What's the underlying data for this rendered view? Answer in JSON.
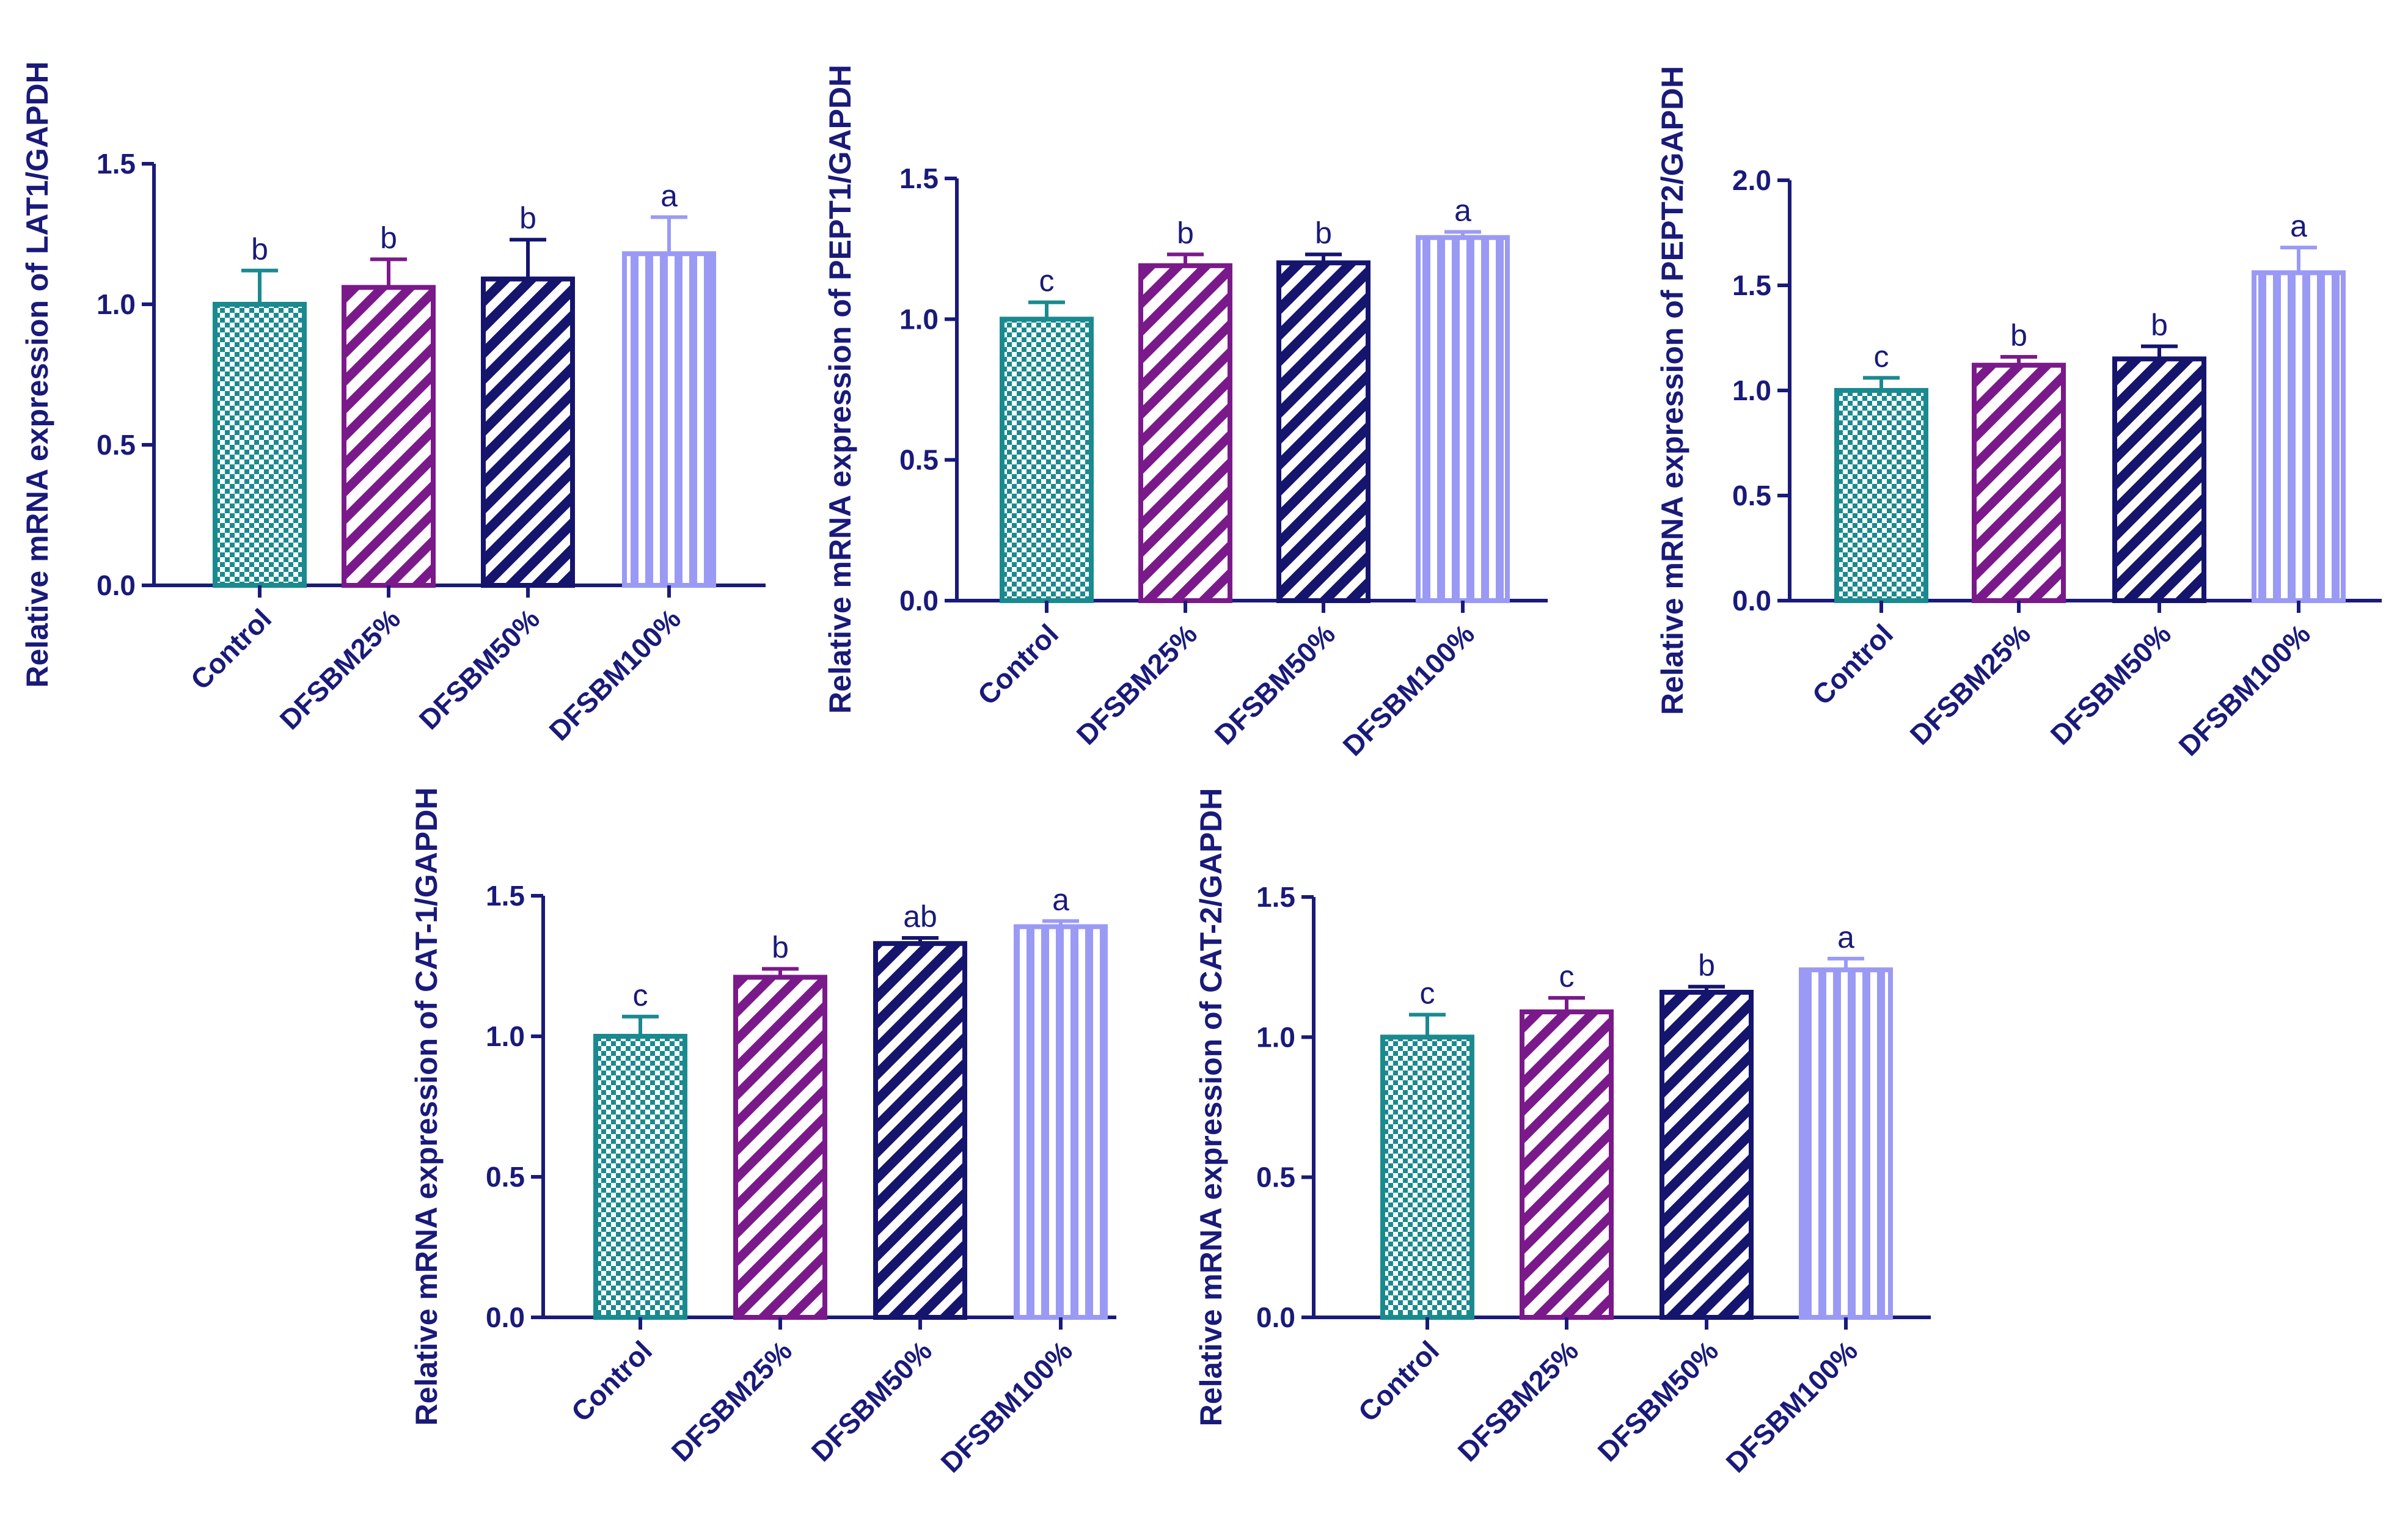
{
  "colors": {
    "axis": "#1a1a7a",
    "text": "#1a1a7a",
    "control": "#1a8a8f",
    "dfsbm25": "#7a1a8a",
    "dfsbm50": "#15156e",
    "dfsbm100": "#9a9af5"
  },
  "chart_data": [
    {
      "type": "bar",
      "panel": "LAT1",
      "ylabel": "Relative mRNA expression of LAT1/GAPDH",
      "categories": [
        "Control",
        "DFSBM25%",
        "DFSBM50%",
        "DFSBM100%"
      ],
      "values": [
        1.0,
        1.06,
        1.09,
        1.18
      ],
      "errors": [
        0.12,
        0.1,
        0.14,
        0.13
      ],
      "significance": [
        "b",
        "b",
        "b",
        "a"
      ],
      "ylim": [
        0,
        1.5
      ],
      "yticks": [
        "0.0",
        "0.5",
        "1.0",
        "1.5"
      ],
      "patterns": [
        "checker",
        "diag",
        "diag",
        "vert"
      ]
    },
    {
      "type": "bar",
      "panel": "PEPT1",
      "ylabel": "Relative mRNA expression of PEPT1/GAPDH",
      "categories": [
        "Control",
        "DFSBM25%",
        "DFSBM50%",
        "DFSBM100%"
      ],
      "values": [
        1.0,
        1.19,
        1.2,
        1.29
      ],
      "errors": [
        0.06,
        0.04,
        0.03,
        0.02
      ],
      "significance": [
        "c",
        "b",
        "b",
        "a"
      ],
      "ylim": [
        0,
        1.5
      ],
      "yticks": [
        "0.0",
        "0.5",
        "1.0",
        "1.5"
      ],
      "patterns": [
        "checker",
        "diag",
        "diag",
        "vert"
      ]
    },
    {
      "type": "bar",
      "panel": "PEPT2",
      "ylabel": "Relative mRNA expression of PEPT2/GAPDH",
      "categories": [
        "Control",
        "DFSBM25%",
        "DFSBM50%",
        "DFSBM100%"
      ],
      "values": [
        1.0,
        1.12,
        1.15,
        1.56
      ],
      "errors": [
        0.06,
        0.04,
        0.06,
        0.12
      ],
      "significance": [
        "c",
        "b",
        "b",
        "a"
      ],
      "ylim": [
        0,
        2.0
      ],
      "yticks": [
        "0.0",
        "0.5",
        "1.0",
        "1.5",
        "2.0"
      ],
      "patterns": [
        "checker",
        "diag",
        "diag",
        "vert"
      ]
    },
    {
      "type": "bar",
      "panel": "CAT-1",
      "ylabel": "Relative mRNA expression of CAT-1/GAPDH",
      "categories": [
        "Control",
        "DFSBM25%",
        "DFSBM50%",
        "DFSBM100%"
      ],
      "values": [
        1.0,
        1.21,
        1.33,
        1.39
      ],
      "errors": [
        0.07,
        0.03,
        0.02,
        0.02
      ],
      "significance": [
        "c",
        "b",
        "ab",
        "a"
      ],
      "ylim": [
        0,
        1.5
      ],
      "yticks": [
        "0.0",
        "0.5",
        "1.0",
        "1.5"
      ],
      "patterns": [
        "checker",
        "diag",
        "diag",
        "vert"
      ]
    },
    {
      "type": "bar",
      "panel": "CAT-2",
      "ylabel": "Relative mRNA expression of CAT-2/GAPDH",
      "categories": [
        "Control",
        "DFSBM25%",
        "DFSBM50%",
        "DFSBM100%"
      ],
      "values": [
        1.0,
        1.09,
        1.16,
        1.24
      ],
      "errors": [
        0.08,
        0.05,
        0.02,
        0.04
      ],
      "significance": [
        "c",
        "c",
        "b",
        "a"
      ],
      "ylim": [
        0,
        1.5
      ],
      "yticks": [
        "0.0",
        "0.5",
        "1.0",
        "1.5"
      ],
      "patterns": [
        "checker",
        "diag",
        "diag",
        "vert"
      ]
    }
  ]
}
